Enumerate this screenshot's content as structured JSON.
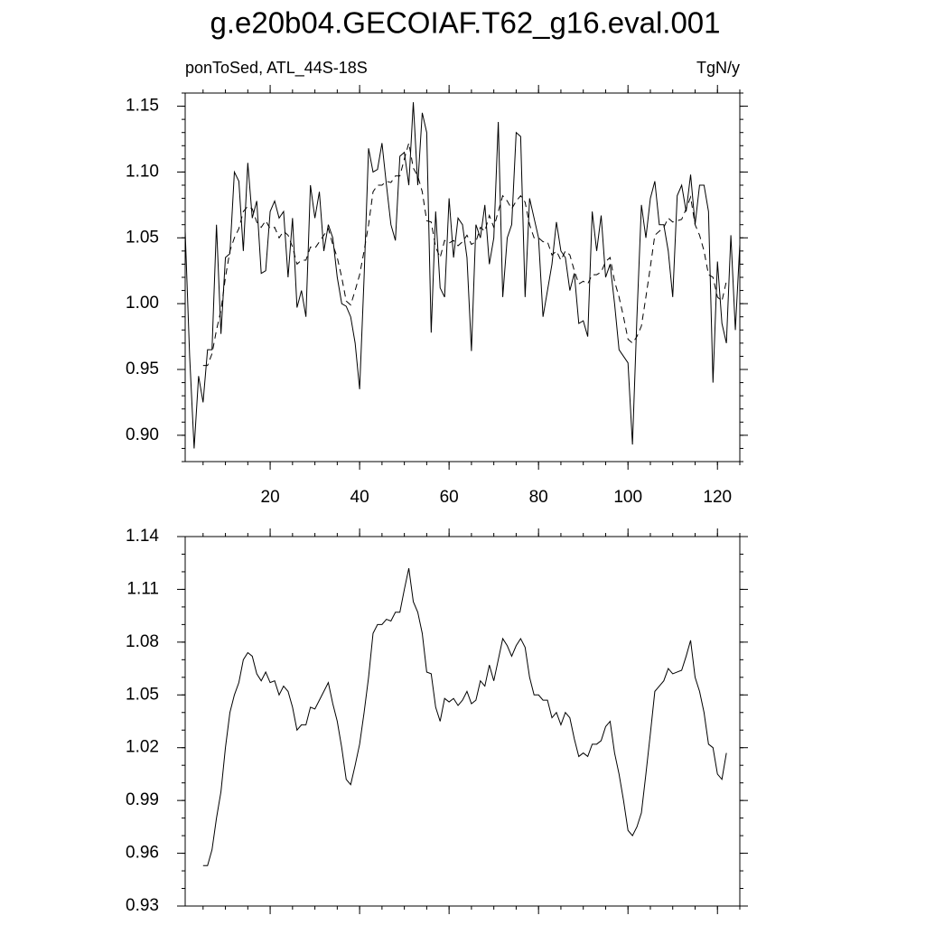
{
  "chart_data": [
    {
      "type": "line",
      "title": "g.e20b04.GECOIAF.T62_g16.eval.001",
      "subtitle_left": "ponToSed, ATL_44S-18S",
      "subtitle_right": "TgN/y",
      "x": [
        1,
        2,
        3,
        4,
        5,
        6,
        7,
        8,
        9,
        10,
        11,
        12,
        13,
        14,
        15,
        16,
        17,
        18,
        19,
        20,
        21,
        22,
        23,
        24,
        25,
        26,
        27,
        28,
        29,
        30,
        31,
        32,
        33,
        34,
        35,
        36,
        37,
        38,
        39,
        40,
        41,
        42,
        43,
        44,
        45,
        46,
        47,
        48,
        49,
        50,
        51,
        52,
        53,
        54,
        55,
        56,
        57,
        58,
        59,
        60,
        61,
        62,
        63,
        64,
        65,
        66,
        67,
        68,
        69,
        70,
        71,
        72,
        73,
        74,
        75,
        76,
        77,
        78,
        79,
        80,
        81,
        82,
        83,
        84,
        85,
        86,
        87,
        88,
        89,
        90,
        91,
        92,
        93,
        94,
        95,
        96,
        97,
        98,
        99,
        100,
        101,
        102,
        103,
        104,
        105,
        106,
        107,
        108,
        109,
        110,
        111,
        112,
        113,
        114,
        115,
        116,
        117,
        118,
        119,
        120,
        121,
        122,
        123,
        124,
        125
      ],
      "series": [
        {
          "color": "#000000",
          "dash": false,
          "values": [
            1.055,
            0.96,
            0.89,
            0.945,
            0.925,
            0.965,
            0.965,
            1.06,
            0.977,
            1.035,
            1.038,
            1.1,
            1.093,
            1.04,
            1.107,
            1.065,
            1.078,
            1.023,
            1.025,
            1.07,
            1.078,
            1.065,
            1.07,
            1.02,
            1.065,
            0.997,
            1.01,
            0.99,
            1.09,
            1.065,
            1.085,
            1.04,
            1.06,
            1.05,
            1.02,
            1.0,
            0.998,
            0.99,
            0.97,
            0.935,
            1.02,
            1.118,
            1.1,
            1.102,
            1.122,
            1.09,
            1.06,
            1.048,
            1.112,
            1.115,
            1.09,
            1.153,
            1.09,
            1.145,
            1.13,
            0.978,
            1.07,
            1.012,
            1.005,
            1.08,
            1.035,
            1.065,
            1.06,
            1.035,
            0.964,
            1.06,
            1.05,
            1.075,
            1.03,
            1.05,
            1.138,
            1.005,
            1.05,
            1.06,
            1.13,
            1.127,
            1.005,
            1.08,
            1.065,
            1.05,
            0.99,
            1.01,
            1.03,
            1.062,
            1.04,
            1.035,
            1.01,
            1.023,
            0.985,
            0.987,
            0.975,
            1.07,
            1.04,
            1.067,
            1.02,
            1.03,
            1.0,
            0.965,
            0.96,
            0.955,
            0.893,
            0.99,
            1.075,
            1.05,
            1.08,
            1.093,
            1.06,
            1.06,
            1.04,
            1.005,
            1.082,
            1.09,
            1.07,
            1.098,
            1.06,
            1.09,
            1.09,
            1.07,
            0.94,
            1.032,
            0.985,
            0.97,
            1.052,
            0.98,
            1.045
          ]
        },
        {
          "color": "#000000",
          "dash": true,
          "values": [
            null,
            null,
            null,
            null,
            0.953,
            0.953,
            0.962,
            0.98,
            0.995,
            1.02,
            1.04,
            1.05,
            1.057,
            1.07,
            1.074,
            1.072,
            1.062,
            1.058,
            1.063,
            1.057,
            1.058,
            1.05,
            1.055,
            1.052,
            1.043,
            1.03,
            1.033,
            1.033,
            1.043,
            1.042,
            1.047,
            1.052,
            1.057,
            1.045,
            1.035,
            1.02,
            1.002,
            0.999,
            1.01,
            1.022,
            1.04,
            1.06,
            1.085,
            1.09,
            1.09,
            1.093,
            1.092,
            1.097,
            1.097,
            1.11,
            1.122,
            1.103,
            1.097,
            1.085,
            1.063,
            1.062,
            1.043,
            1.035,
            1.048,
            1.046,
            1.048,
            1.044,
            1.047,
            1.052,
            1.045,
            1.047,
            1.058,
            1.055,
            1.067,
            1.058,
            1.07,
            1.082,
            1.078,
            1.072,
            1.078,
            1.082,
            1.077,
            1.06,
            1.05,
            1.05,
            1.047,
            1.047,
            1.037,
            1.04,
            1.033,
            1.04,
            1.037,
            1.025,
            1.015,
            1.017,
            1.015,
            1.022,
            1.022,
            1.024,
            1.032,
            1.035,
            1.017,
            1.005,
            0.99,
            0.973,
            0.97,
            0.975,
            0.983,
            1.005,
            1.028,
            1.052,
            1.055,
            1.058,
            1.065,
            1.062,
            1.063,
            1.064,
            1.072,
            1.081,
            1.06,
            1.052,
            1.04,
            1.022,
            1.02,
            1.005,
            1.002,
            1.017,
            null,
            null,
            null
          ]
        }
      ],
      "xlim": [
        1,
        125
      ],
      "xticks": [
        20,
        40,
        60,
        80,
        100,
        120
      ],
      "xtick_labels": true,
      "xminor": 4,
      "ylim": [
        0.88,
        1.16
      ],
      "yticks": [
        {
          "value": 0.9,
          "label": "0.90"
        },
        0.95,
        {
          "value": 1.0,
          "label": "1.00"
        },
        1.05,
        {
          "value": 1.1,
          "label": "1.10"
        },
        1.15
      ],
      "yminor": 5
    },
    {
      "type": "line",
      "x": [
        1,
        2,
        3,
        4,
        5,
        6,
        7,
        8,
        9,
        10,
        11,
        12,
        13,
        14,
        15,
        16,
        17,
        18,
        19,
        20,
        21,
        22,
        23,
        24,
        25,
        26,
        27,
        28,
        29,
        30,
        31,
        32,
        33,
        34,
        35,
        36,
        37,
        38,
        39,
        40,
        41,
        42,
        43,
        44,
        45,
        46,
        47,
        48,
        49,
        50,
        51,
        52,
        53,
        54,
        55,
        56,
        57,
        58,
        59,
        60,
        61,
        62,
        63,
        64,
        65,
        66,
        67,
        68,
        69,
        70,
        71,
        72,
        73,
        74,
        75,
        76,
        77,
        78,
        79,
        80,
        81,
        82,
        83,
        84,
        85,
        86,
        87,
        88,
        89,
        90,
        91,
        92,
        93,
        94,
        95,
        96,
        97,
        98,
        99,
        100,
        101,
        102,
        103,
        104,
        105,
        106,
        107,
        108,
        109,
        110,
        111,
        112,
        113,
        114,
        115,
        116,
        117,
        118,
        119,
        120,
        121,
        122,
        123,
        124,
        125
      ],
      "series": [
        {
          "color": "#000000",
          "dash": false,
          "values": [
            null,
            null,
            null,
            null,
            0.953,
            0.953,
            0.962,
            0.98,
            0.995,
            1.02,
            1.04,
            1.05,
            1.057,
            1.07,
            1.074,
            1.072,
            1.062,
            1.058,
            1.063,
            1.057,
            1.058,
            1.05,
            1.055,
            1.052,
            1.043,
            1.03,
            1.033,
            1.033,
            1.043,
            1.042,
            1.047,
            1.052,
            1.057,
            1.045,
            1.035,
            1.02,
            1.002,
            0.999,
            1.01,
            1.022,
            1.04,
            1.06,
            1.085,
            1.09,
            1.09,
            1.093,
            1.092,
            1.097,
            1.097,
            1.11,
            1.122,
            1.103,
            1.097,
            1.085,
            1.063,
            1.062,
            1.043,
            1.035,
            1.048,
            1.046,
            1.048,
            1.044,
            1.047,
            1.052,
            1.045,
            1.047,
            1.058,
            1.055,
            1.067,
            1.058,
            1.07,
            1.082,
            1.078,
            1.072,
            1.078,
            1.082,
            1.077,
            1.06,
            1.05,
            1.05,
            1.047,
            1.047,
            1.037,
            1.04,
            1.033,
            1.04,
            1.037,
            1.025,
            1.015,
            1.017,
            1.015,
            1.022,
            1.022,
            1.024,
            1.032,
            1.035,
            1.017,
            1.005,
            0.99,
            0.973,
            0.97,
            0.975,
            0.983,
            1.005,
            1.028,
            1.052,
            1.055,
            1.058,
            1.065,
            1.062,
            1.063,
            1.064,
            1.072,
            1.081,
            1.06,
            1.052,
            1.04,
            1.022,
            1.02,
            1.005,
            1.002,
            1.017,
            null,
            null,
            null
          ]
        }
      ],
      "xlim": [
        1,
        125
      ],
      "xticks": [
        20,
        40,
        60,
        80,
        100,
        120
      ],
      "xtick_labels": false,
      "xminor": 4,
      "ylim": [
        0.93,
        1.14
      ],
      "yticks": [
        0.93,
        0.96,
        0.99,
        1.02,
        1.05,
        1.08,
        1.11,
        1.14
      ],
      "yminor": 3
    }
  ]
}
